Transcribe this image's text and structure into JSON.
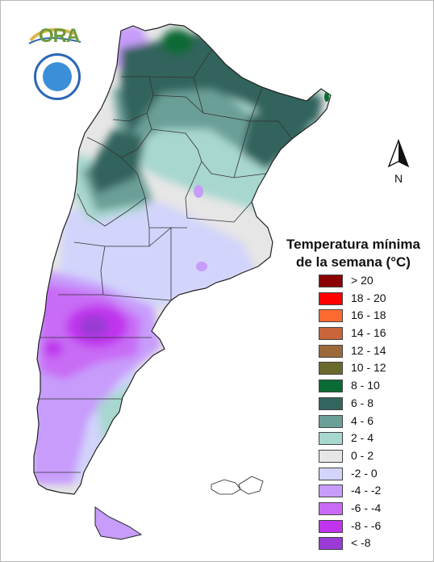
{
  "map": {
    "legend_title_line1": "Temperatura mínima",
    "legend_title_line2": "de la semana (°C)",
    "north_label": "N",
    "logo_ora_text": "ORA",
    "legend": [
      {
        "label": "> 20",
        "color": "#8b0000"
      },
      {
        "label": "18 - 20",
        "color": "#ff0000"
      },
      {
        "label": "16 - 18",
        "color": "#ff6a30"
      },
      {
        "label": "14 - 16",
        "color": "#c8653a"
      },
      {
        "label": "12 - 14",
        "color": "#9c6a3a"
      },
      {
        "label": "10 - 12",
        "color": "#6b6a2e"
      },
      {
        "label": "8 - 10",
        "color": "#0b6b34"
      },
      {
        "label": "6 - 8",
        "color": "#33645d"
      },
      {
        "label": "4 - 6",
        "color": "#6a9f97"
      },
      {
        "label": "2 - 4",
        "color": "#a7d7cf"
      },
      {
        "label": "0 - 2",
        "color": "#e6e6e6"
      },
      {
        "label": "-2 - 0",
        "color": "#d2d4fb"
      },
      {
        "label": "-4 - -2",
        "color": "#c79cfb"
      },
      {
        "label": "-6 - -4",
        "color": "#c86cf5"
      },
      {
        "label": "-8 - -6",
        "color": "#c034ee"
      },
      {
        "label": "< -8",
        "color": "#9a3bd6"
      }
    ]
  }
}
